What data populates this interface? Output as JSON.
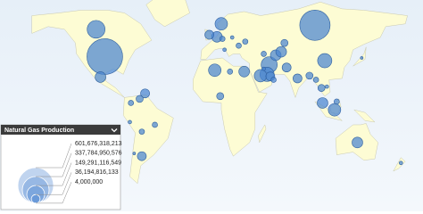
{
  "map": {
    "bubbles": [
      {
        "lon": -98,
        "lat": 38,
        "value": 601676318213
      },
      {
        "lon": -106,
        "lat": 58,
        "value": 150000000000
      },
      {
        "lon": 95,
        "lat": 61,
        "value": 435000000000
      },
      {
        "lon": 9,
        "lat": 62,
        "value": 74000000000
      },
      {
        "lon": 5,
        "lat": 52.5,
        "value": 54000000000
      },
      {
        "lon": -2,
        "lat": 54,
        "value": 38000000000
      },
      {
        "lon": 53,
        "lat": 32,
        "value": 122000000000
      },
      {
        "lon": 51,
        "lat": 25,
        "value": 96000000000
      },
      {
        "lon": 45,
        "lat": 24,
        "value": 74000000000
      },
      {
        "lon": 54,
        "lat": 23.5,
        "value": 38000000000
      },
      {
        "lon": 3,
        "lat": 28,
        "value": 74000000000
      },
      {
        "lon": 30,
        "lat": 27,
        "value": 54000000000
      },
      {
        "lon": 59,
        "lat": 39,
        "value": 54000000000
      },
      {
        "lon": 64,
        "lat": 41.5,
        "value": 54000000000
      },
      {
        "lon": 67,
        "lat": 48,
        "value": 24000000000
      },
      {
        "lon": 31,
        "lat": 49,
        "value": 13500000000
      },
      {
        "lon": 48,
        "lat": 40,
        "value": 13500000000
      },
      {
        "lon": 69,
        "lat": 30,
        "value": 38000000000
      },
      {
        "lon": 79,
        "lat": 22,
        "value": 38000000000
      },
      {
        "lon": 104,
        "lat": 35,
        "value": 96000000000
      },
      {
        "lon": 113,
        "lat": -1,
        "value": 74000000000
      },
      {
        "lon": 102,
        "lat": 4,
        "value": 54000000000
      },
      {
        "lon": 101,
        "lat": 15,
        "value": 24000000000
      },
      {
        "lon": 90,
        "lat": 24,
        "value": 24000000000
      },
      {
        "lon": 134,
        "lat": -25,
        "value": 54000000000
      },
      {
        "lon": -64,
        "lat": -35,
        "value": 38000000000
      },
      {
        "lon": -66,
        "lat": 7,
        "value": 24000000000
      },
      {
        "lon": -61,
        "lat": 11,
        "value": 38000000000
      },
      {
        "lon": -102,
        "lat": 23,
        "value": 54000000000
      },
      {
        "lon": -64,
        "lat": -17,
        "value": 13500000000
      },
      {
        "lon": 8,
        "lat": 9,
        "value": 24000000000
      },
      {
        "lon": 17,
        "lat": 27,
        "value": 13500000000
      },
      {
        "lon": 57,
        "lat": 21,
        "value": 13500000000
      },
      {
        "lon": 48,
        "lat": 29,
        "value": 6000000000
      },
      {
        "lon": -52,
        "lat": -12,
        "value": 13500000000
      },
      {
        "lon": -75,
        "lat": -10,
        "value": 6000000000
      },
      {
        "lon": -74,
        "lat": 4,
        "value": 13500000000
      },
      {
        "lon": 10,
        "lat": 51,
        "value": 13500000000
      },
      {
        "lon": 12,
        "lat": 43,
        "value": 6000000000
      },
      {
        "lon": 25,
        "lat": 46,
        "value": 13500000000
      },
      {
        "lon": 19,
        "lat": 52,
        "value": 6000000000
      },
      {
        "lon": 96,
        "lat": 21,
        "value": 13500000000
      },
      {
        "lon": 106,
        "lat": 16,
        "value": 6000000000
      },
      {
        "lon": 115,
        "lat": 5,
        "value": 13500000000
      },
      {
        "lon": 138,
        "lat": 37,
        "value": 3400000000
      },
      {
        "lon": 174,
        "lat": -40,
        "value": 6000000000
      },
      {
        "lon": -71,
        "lat": -33,
        "value": 3400000000
      }
    ]
  },
  "legend": {
    "title": "Natural Gas Production",
    "ticks": [
      {
        "value": 601676318213,
        "label": "601,676,318,213"
      },
      {
        "value": 337784950576,
        "label": "337,784,950,576"
      },
      {
        "value": 149291116549,
        "label": "149,291,116,549"
      },
      {
        "value": 36194816133,
        "label": "36,194,816,133"
      },
      {
        "value": 4000000,
        "label": "4,000,000"
      }
    ]
  }
}
